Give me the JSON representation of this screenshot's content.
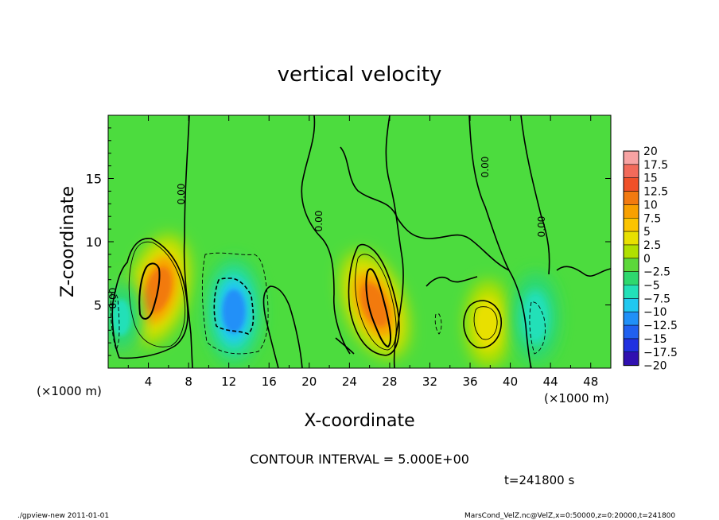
{
  "chart_data": {
    "type": "heatmap",
    "title": "vertical velocity",
    "xlabel": "X-coordinate",
    "ylabel": "Z-coordinate",
    "x_unit_note": "(×1000 m)",
    "y_unit_note": "(×1000 m)",
    "x_range": [
      0,
      50
    ],
    "y_range": [
      0,
      20
    ],
    "x_ticks": [
      "4",
      "8",
      "12",
      "16",
      "20",
      "24",
      "28",
      "32",
      "36",
      "40",
      "44",
      "48"
    ],
    "y_ticks": [
      "5",
      "10",
      "15"
    ],
    "colorbar": {
      "labels": [
        "20",
        "17.5",
        "15",
        "12.5",
        "10",
        "7.5",
        "5",
        "2.5",
        "0",
        "−2.5",
        "−5",
        "−7.5",
        "−10",
        "−12.5",
        "−15",
        "−17.5",
        "−20"
      ],
      "colors": [
        "#f7a3a3",
        "#f26a5a",
        "#f05028",
        "#f27a10",
        "#f8a000",
        "#fbc400",
        "#e8e000",
        "#b0e000",
        "#5cd83a",
        "#2ed86e",
        "#22e0b8",
        "#20c8f0",
        "#2090f8",
        "#2060f0",
        "#2030e0",
        "#3010b0",
        "#7010b8"
      ]
    },
    "features": [
      {
        "label": "updraft",
        "x_center": 5.0,
        "z_center": 6.2,
        "peak": 12
      },
      {
        "label": "downdraft",
        "x_center": 12.5,
        "z_center": 4.5,
        "peak": -10
      },
      {
        "label": "updraft",
        "x_center": 26.5,
        "z_center": 5.0,
        "peak": 12
      },
      {
        "label": "updraft",
        "x_center": 37.8,
        "z_center": 3.5,
        "peak": 5
      },
      {
        "label": "downdraft",
        "x_center": 42.5,
        "z_center": 4.0,
        "peak": -6
      },
      {
        "label": "downdraft",
        "x_center": 1.3,
        "z_center": 4.0,
        "peak": -4
      }
    ],
    "contour_labels": [
      "0.00",
      "0.00",
      "0.00",
      "0.00",
      "0.00"
    ],
    "contour_interval_text": "CONTOUR INTERVAL = 5.000E+00",
    "time_text": "t=241800 s"
  },
  "footer": {
    "left": "./gpview-new   2011-01-01",
    "right": "MarsCond_VelZ.nc@VelZ,x=0:50000,z=0:20000,t=241800"
  }
}
